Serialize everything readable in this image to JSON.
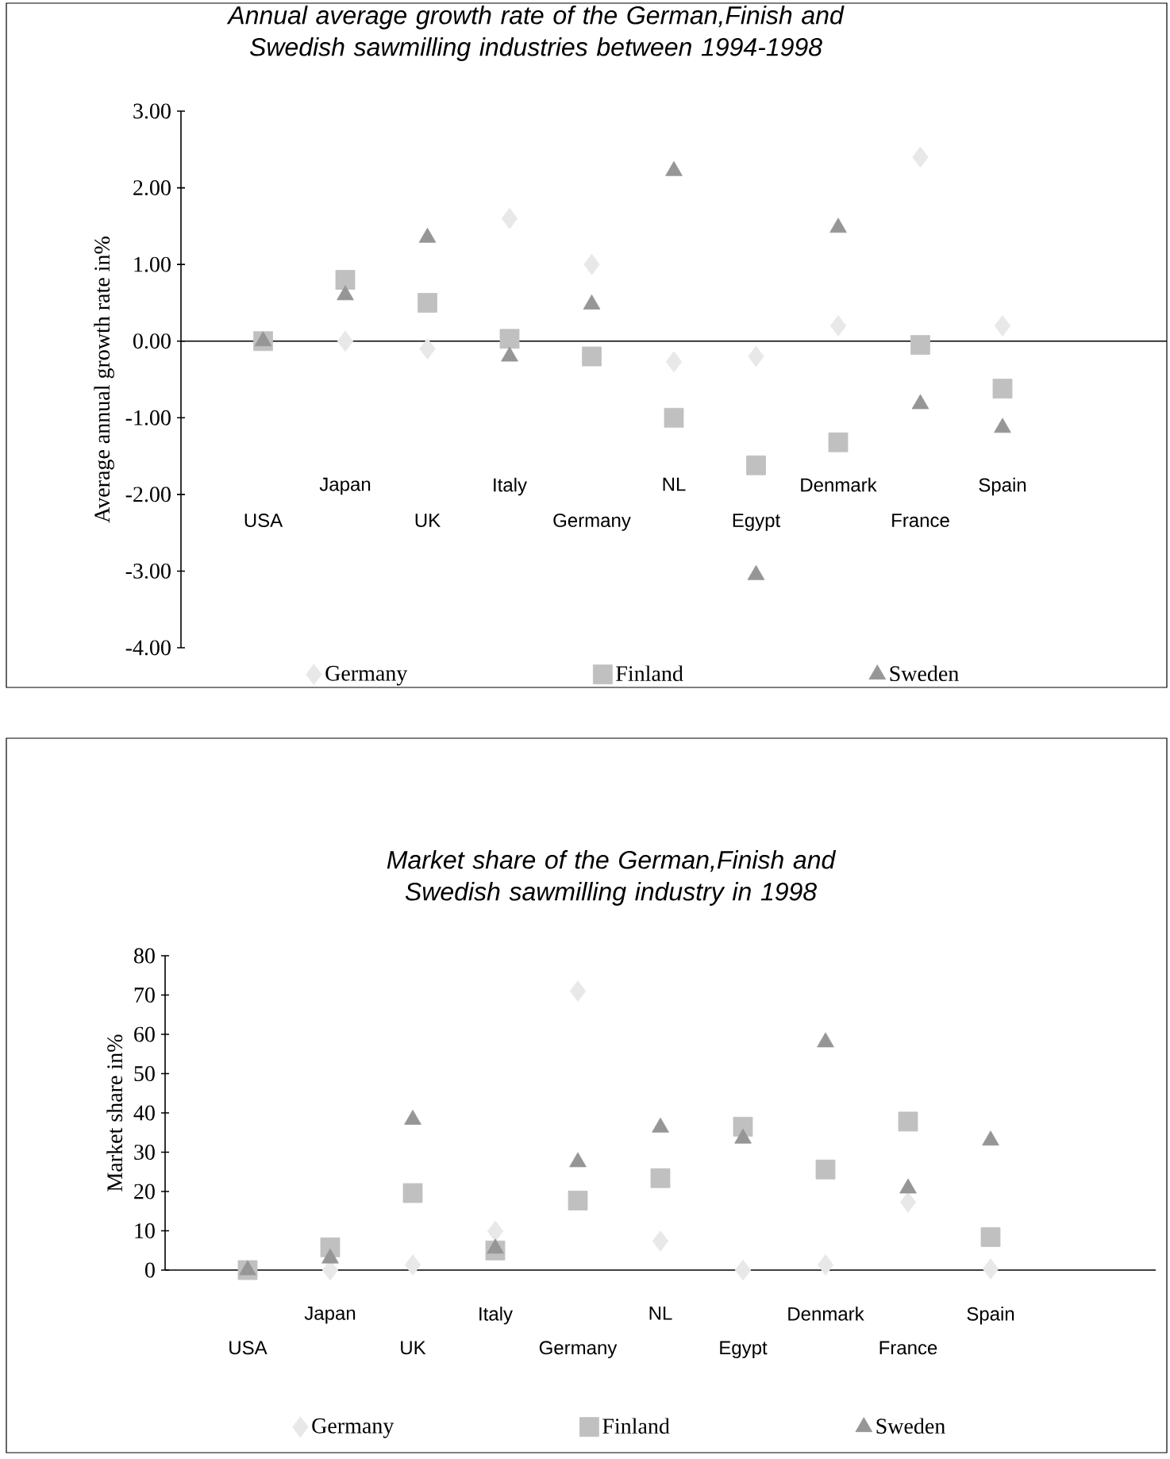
{
  "chart_data": [
    {
      "type": "scatter",
      "title": "Annual average growth rate of the German,Finish and Swedish sawmilling industries between 1994-1998",
      "ylabel": "Average annual growth rate in%",
      "categories": [
        "USA",
        "Japan",
        "UK",
        "Italy",
        "Germany",
        "NL",
        "Egypt",
        "Denmark",
        "France",
        "Spain"
      ],
      "series": [
        {
          "name": "Germany",
          "color": "#e8e8e8",
          "marker": "diamond",
          "values": [
            null,
            0,
            -0.1,
            1.6,
            1.0,
            -0.27,
            -0.2,
            0.2,
            2.4,
            0.2
          ]
        },
        {
          "name": "Finland",
          "color": "#c0c0c0",
          "marker": "square",
          "values": [
            0,
            0.8,
            0.5,
            0.03,
            -0.2,
            -1.0,
            -1.62,
            -1.32,
            -0.05,
            -0.62
          ]
        },
        {
          "name": "Sweden",
          "color": "#969696",
          "marker": "triangle",
          "values": [
            0,
            0.6,
            1.35,
            -0.2,
            0.48,
            2.22,
            -3.05,
            1.48,
            -0.82,
            -1.13
          ]
        }
      ],
      "ylim": [
        -4,
        3
      ],
      "yticks": [
        {
          "value": -4,
          "label": "-4.00"
        },
        {
          "value": -3,
          "label": "-3.00"
        },
        {
          "value": -2,
          "label": "-2.00"
        },
        {
          "value": -1,
          "label": "-1.00"
        },
        {
          "value": 0,
          "label": "0.00"
        },
        {
          "value": 1,
          "label": "1.00"
        },
        {
          "value": 2,
          "label": "2.00"
        },
        {
          "value": 3,
          "label": "3.00"
        }
      ],
      "legend": "bottom"
    },
    {
      "type": "scatter",
      "title": "Market share of the German,Finish and Swedish sawmilling industry in 1998",
      "ylabel": "Market share in%",
      "categories": [
        "USA",
        "Japan",
        "UK",
        "Italy",
        "Germany",
        "NL",
        "Egypt",
        "Denmark",
        "France",
        "Spain"
      ],
      "series": [
        {
          "name": "Germany",
          "color": "#e8e8e8",
          "marker": "diamond",
          "values": [
            null,
            0,
            1.3,
            9.9,
            71,
            7.4,
            0,
            1.3,
            17.3,
            0.3
          ]
        },
        {
          "name": "Finland",
          "color": "#c0c0c0",
          "marker": "square",
          "values": [
            0,
            5.8,
            19.6,
            5,
            17.7,
            23.4,
            36.5,
            25.6,
            37.8,
            8.4
          ]
        },
        {
          "name": "Sweden",
          "color": "#969696",
          "marker": "triangle",
          "values": [
            0,
            3,
            38.3,
            5.5,
            27.5,
            36.3,
            33.5,
            58,
            20.8,
            33
          ]
        }
      ],
      "ylim": [
        0,
        80
      ],
      "yticks": [
        0,
        10,
        20,
        30,
        40,
        50,
        60,
        70,
        80
      ],
      "legend": "bottom"
    }
  ]
}
